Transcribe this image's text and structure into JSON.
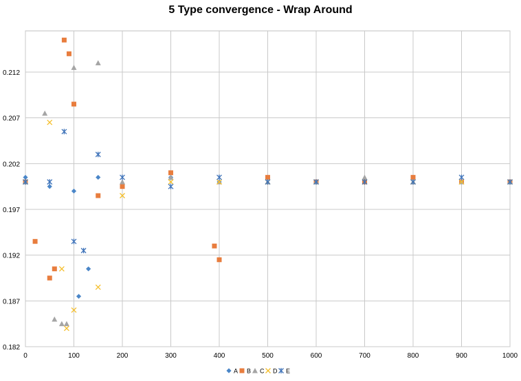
{
  "chart_data": {
    "type": "scatter",
    "title": "5 Type convergence - Wrap Around",
    "xlabel": "",
    "ylabel": "",
    "xlim": [
      0,
      1000
    ],
    "ylim": [
      0.182,
      0.2165
    ],
    "x_ticks": [
      "0",
      "100",
      "200",
      "300",
      "400",
      "500",
      "600",
      "700",
      "800",
      "900",
      "1000"
    ],
    "y_ticks": [
      "0.182",
      "0.187",
      "0.192",
      "0.197",
      "0.202",
      "0.207",
      "0.212"
    ],
    "grid": true,
    "legend_position": "bottom",
    "series": [
      {
        "name": "A",
        "marker": "diamond",
        "color": "#4a86c8",
        "x": [
          0,
          50,
          100,
          110,
          130,
          150,
          200,
          300,
          400,
          500,
          600,
          700,
          800,
          900,
          1000
        ],
        "y": [
          0.2005,
          0.1995,
          0.199,
          0.1875,
          0.1905,
          0.2005,
          0.1995,
          0.2005,
          0.2,
          0.2005,
          0.2,
          0.2,
          0.2005,
          0.2,
          0.2
        ]
      },
      {
        "name": "B",
        "marker": "square",
        "color": "#e87d3e",
        "x": [
          0,
          20,
          50,
          60,
          80,
          90,
          100,
          150,
          200,
          300,
          390,
          400,
          500,
          600,
          700,
          800,
          900,
          1000
        ],
        "y": [
          0.2,
          0.1935,
          0.1895,
          0.1905,
          0.2155,
          0.214,
          0.2085,
          0.1985,
          0.1995,
          0.201,
          0.193,
          0.1915,
          0.2005,
          0.2,
          0.2,
          0.2005,
          0.2,
          0.2
        ]
      },
      {
        "name": "C",
        "marker": "triangle",
        "color": "#a5a5a5",
        "x": [
          0,
          40,
          60,
          75,
          85,
          100,
          150,
          200,
          300,
          400,
          500,
          600,
          700,
          800,
          900,
          1000
        ],
        "y": [
          0.2,
          0.2075,
          0.185,
          0.1845,
          0.1845,
          0.2125,
          0.213,
          0.2,
          0.2005,
          0.2,
          0.2,
          0.2,
          0.2005,
          0.2,
          0.2,
          0.2
        ]
      },
      {
        "name": "D",
        "marker": "x",
        "color": "#f5be2a",
        "x": [
          0,
          50,
          75,
          85,
          100,
          150,
          200,
          300,
          400,
          500,
          600,
          700,
          800,
          900,
          1000
        ],
        "y": [
          0.2,
          0.2065,
          0.1905,
          0.184,
          0.186,
          0.1885,
          0.1985,
          0.2,
          0.2,
          0.2,
          0.2,
          0.2,
          0.2,
          0.2,
          0.2
        ]
      },
      {
        "name": "E",
        "marker": "asterisk",
        "color": "#3f73b9",
        "x": [
          0,
          50,
          80,
          100,
          120,
          150,
          200,
          300,
          400,
          500,
          600,
          700,
          800,
          900,
          1000
        ],
        "y": [
          0.2,
          0.2,
          0.2055,
          0.1935,
          0.1925,
          0.203,
          0.2005,
          0.1995,
          0.2005,
          0.2,
          0.2,
          0.2,
          0.2,
          0.2005,
          0.2
        ]
      }
    ]
  }
}
